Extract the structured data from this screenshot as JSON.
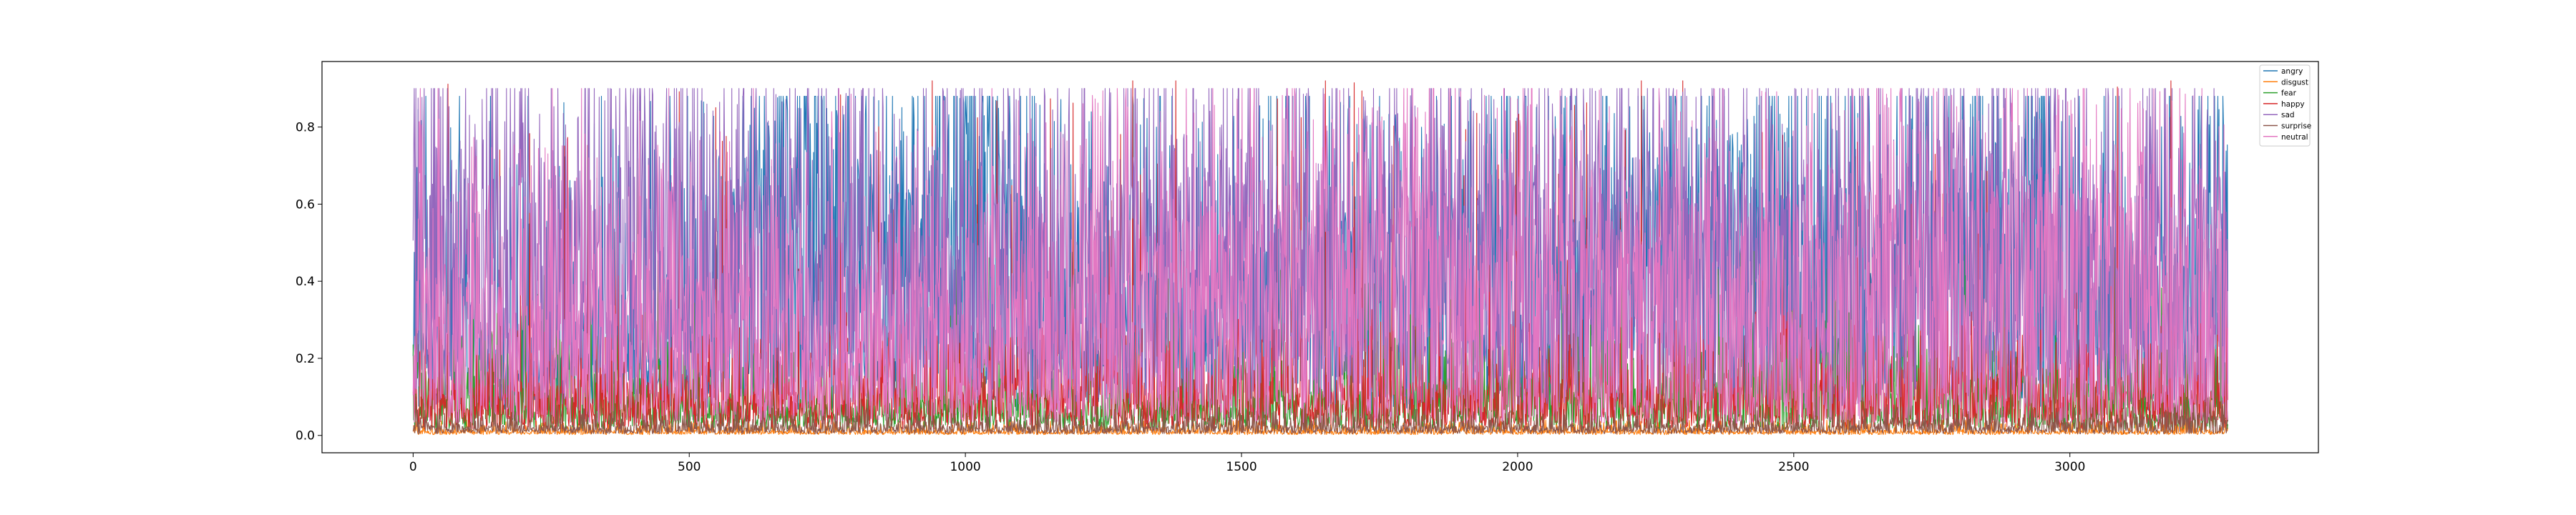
{
  "chart_data": {
    "type": "line",
    "title": "",
    "xlabel": "",
    "ylabel": "",
    "xlim": [
      -165,
      3450
    ],
    "ylim": [
      -0.045,
      0.97
    ],
    "n_points": 3287,
    "x_ticks": [
      0,
      500,
      1000,
      1500,
      2000,
      2500,
      3000
    ],
    "y_ticks": [
      0.0,
      0.2,
      0.4,
      0.6,
      0.8
    ],
    "legend_position": "top-right",
    "grid": false,
    "series": [
      {
        "name": "angry",
        "color": "#1f77b4",
        "base": 0.16,
        "amp": 0.6,
        "peak": 0.88,
        "values": [
          0.3,
          0.13,
          0.12,
          0.28,
          0.15,
          0.55,
          0.72,
          0.62,
          0.45,
          0.78,
          0.35,
          0.3,
          0.38,
          0.28,
          0.45,
          0.4,
          0.33,
          0.5,
          0.45,
          0.4,
          0.55,
          0.6,
          0.48,
          0.5,
          0.45,
          0.52,
          0.65,
          0.4,
          0.35,
          0.45
        ]
      },
      {
        "name": "disgust",
        "color": "#ff7f0e",
        "base": 0.005,
        "amp": 0.03,
        "peak": 0.04,
        "values": [
          0.01,
          0.01,
          0.01,
          0.01,
          0.01,
          0.01,
          0.01,
          0.01,
          0.01,
          0.01,
          0.01,
          0.01,
          0.01,
          0.01,
          0.01,
          0.01,
          0.01,
          0.01,
          0.01,
          0.01,
          0.01,
          0.01,
          0.01,
          0.01,
          0.01,
          0.01,
          0.01,
          0.01,
          0.01,
          0.01
        ]
      },
      {
        "name": "fear",
        "color": "#2ca02c",
        "base": 0.04,
        "amp": 0.15,
        "peak": 0.48,
        "values": [
          0.12,
          0.13,
          0.1,
          0.12,
          0.1,
          0.08,
          0.07,
          0.06,
          0.07,
          0.08,
          0.08,
          0.06,
          0.07,
          0.07,
          0.08,
          0.1,
          0.12,
          0.1,
          0.12,
          0.1,
          0.1,
          0.12,
          0.18,
          0.2,
          0.15,
          0.12,
          0.12,
          0.1,
          0.08,
          0.1
        ]
      },
      {
        "name": "happy",
        "color": "#d62728",
        "base": 0.04,
        "amp": 0.2,
        "peak": 0.92,
        "values": [
          0.1,
          0.12,
          0.1,
          0.1,
          0.12,
          0.1,
          0.1,
          0.12,
          0.1,
          0.12,
          0.1,
          0.12,
          0.12,
          0.15,
          0.1,
          0.12,
          0.1,
          0.1,
          0.12,
          0.12,
          0.1,
          0.12,
          0.15,
          0.12,
          0.15,
          0.12,
          0.15,
          0.12,
          0.1,
          0.12
        ]
      },
      {
        "name": "sad",
        "color": "#9467bd",
        "base": 0.2,
        "amp": 0.55,
        "peak": 0.9,
        "values": [
          0.55,
          0.5,
          0.55,
          0.45,
          0.6,
          0.55,
          0.45,
          0.4,
          0.45,
          0.4,
          0.55,
          0.5,
          0.55,
          0.6,
          0.5,
          0.55,
          0.5,
          0.55,
          0.5,
          0.55,
          0.55,
          0.5,
          0.5,
          0.55,
          0.55,
          0.6,
          0.55,
          0.5,
          0.5,
          0.5
        ]
      },
      {
        "name": "surprise",
        "color": "#8c564b",
        "base": 0.01,
        "amp": 0.05,
        "peak": 0.1,
        "values": [
          0.02,
          0.02,
          0.02,
          0.02,
          0.02,
          0.02,
          0.02,
          0.02,
          0.02,
          0.02,
          0.02,
          0.02,
          0.02,
          0.02,
          0.02,
          0.02,
          0.02,
          0.02,
          0.02,
          0.02,
          0.02,
          0.02,
          0.02,
          0.02,
          0.03,
          0.02,
          0.02,
          0.03,
          0.04,
          0.05
        ]
      },
      {
        "name": "neutral",
        "color": "#e377c2",
        "base": 0.08,
        "amp": 0.5,
        "peak": 0.9,
        "values": [
          0.35,
          0.3,
          0.25,
          0.3,
          0.35,
          0.3,
          0.25,
          0.2,
          0.3,
          0.25,
          0.35,
          0.4,
          0.4,
          0.45,
          0.4,
          0.4,
          0.45,
          0.4,
          0.45,
          0.4,
          0.45,
          0.4,
          0.4,
          0.45,
          0.5,
          0.45,
          0.5,
          0.45,
          0.45,
          0.4
        ]
      }
    ]
  }
}
